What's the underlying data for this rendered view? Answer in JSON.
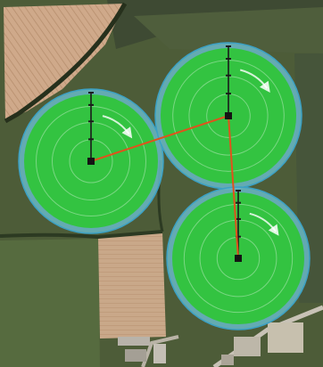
{
  "map": {
    "type": "satellite-irrigation-layout",
    "pivots": [
      {
        "id": "pivot-1",
        "sweep_direction": "clockwise"
      },
      {
        "id": "pivot-2",
        "sweep_direction": "clockwise"
      },
      {
        "id": "pivot-3",
        "sweep_direction": "clockwise"
      }
    ],
    "pipeline_links": [
      {
        "from": "pivot-1",
        "to": "pivot-2"
      },
      {
        "from": "pivot-2",
        "to": "pivot-3"
      }
    ]
  },
  "colors": {
    "irrigated_area": "#2fc437",
    "pivot_ring": "#69b9c8",
    "pivot_outline": "#3ca1c4",
    "pipeline": "#e0521c",
    "span_arm": "#1a1a1a",
    "pivot_center": "#141414",
    "ground_dark": "#3c4a30",
    "ground_mid": "#55653f",
    "plowed_field": "#c9a889",
    "stubble_field": "#cfa98a",
    "buildings": "#b8b3aa"
  }
}
